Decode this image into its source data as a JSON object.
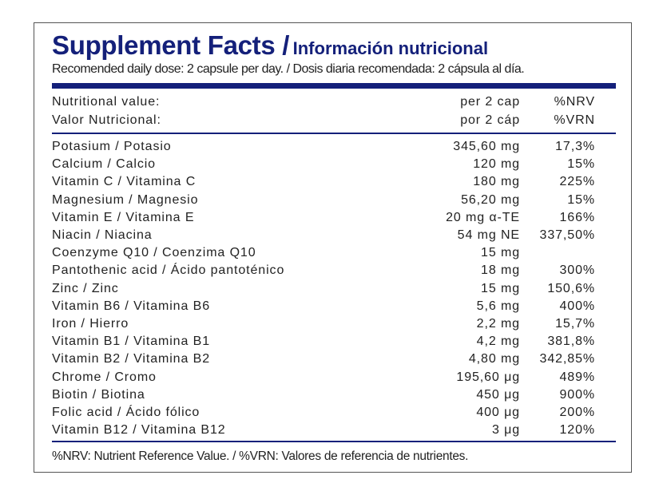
{
  "title_en": "Supplement Facts /",
  "title_es": "Información nutricional",
  "subtitle": "Recomended daily dose: 2 capsule per day. / Dosis diaria recomendada: 2 cápsula al día.",
  "header": [
    {
      "name": "Nutritional value:",
      "amount": "per 2 cap",
      "pct": "%NRV"
    },
    {
      "name": "Valor Nutricional:",
      "amount": "por 2 cáp",
      "pct": "%VRN"
    }
  ],
  "rows": [
    {
      "name": "Potasium / Potasio",
      "amount": "345,60 mg",
      "pct": "17,3%"
    },
    {
      "name": "Calcium / Calcio",
      "amount": "120 mg",
      "pct": "15%"
    },
    {
      "name": "Vitamin C / Vitamina C",
      "amount": "180 mg",
      "pct": "225%"
    },
    {
      "name": "Magnesium / Magnesio",
      "amount": "56,20 mg",
      "pct": "15%"
    },
    {
      "name": "Vitamin E / Vitamina E",
      "amount": "20 mg α-TE",
      "pct": "166%"
    },
    {
      "name": "Niacin / Niacina",
      "amount": "54 mg NE",
      "pct": "337,50%"
    },
    {
      "name": "Coenzyme Q10 / Coenzima Q10",
      "amount": "15 mg",
      "pct": ""
    },
    {
      "name": "Pantothenic acid / Ácido pantoténico",
      "amount": "18 mg",
      "pct": "300%"
    },
    {
      "name": "Zinc / Zinc",
      "amount": "15 mg",
      "pct": "150,6%"
    },
    {
      "name": "Vitamin B6 / Vitamina B6",
      "amount": "5,6 mg",
      "pct": "400%"
    },
    {
      "name": "Iron / Hierro",
      "amount": "2,2 mg",
      "pct": "15,7%"
    },
    {
      "name": "Vitamin B1 / Vitamina B1",
      "amount": "4,2 mg",
      "pct": "381,8%"
    },
    {
      "name": "Vitamin B2 / Vitamina B2",
      "amount": "4,80 mg",
      "pct": "342,85%"
    },
    {
      "name": "Chrome / Cromo",
      "amount": "195,60 μg",
      "pct": "489%"
    },
    {
      "name": "Biotin / Biotina",
      "amount": "450 μg",
      "pct": "900%"
    },
    {
      "name": "Folic acid / Ácido fólico",
      "amount": "400 μg",
      "pct": "200%"
    },
    {
      "name": "Vitamin B12 / Vitamina B12",
      "amount": "3 μg",
      "pct": "120%"
    }
  ],
  "footnote": "%NRV: Nutrient Reference Value. / %VRN: Valores de referencia de nutrientes.",
  "colors": {
    "accent": "#14207a"
  }
}
